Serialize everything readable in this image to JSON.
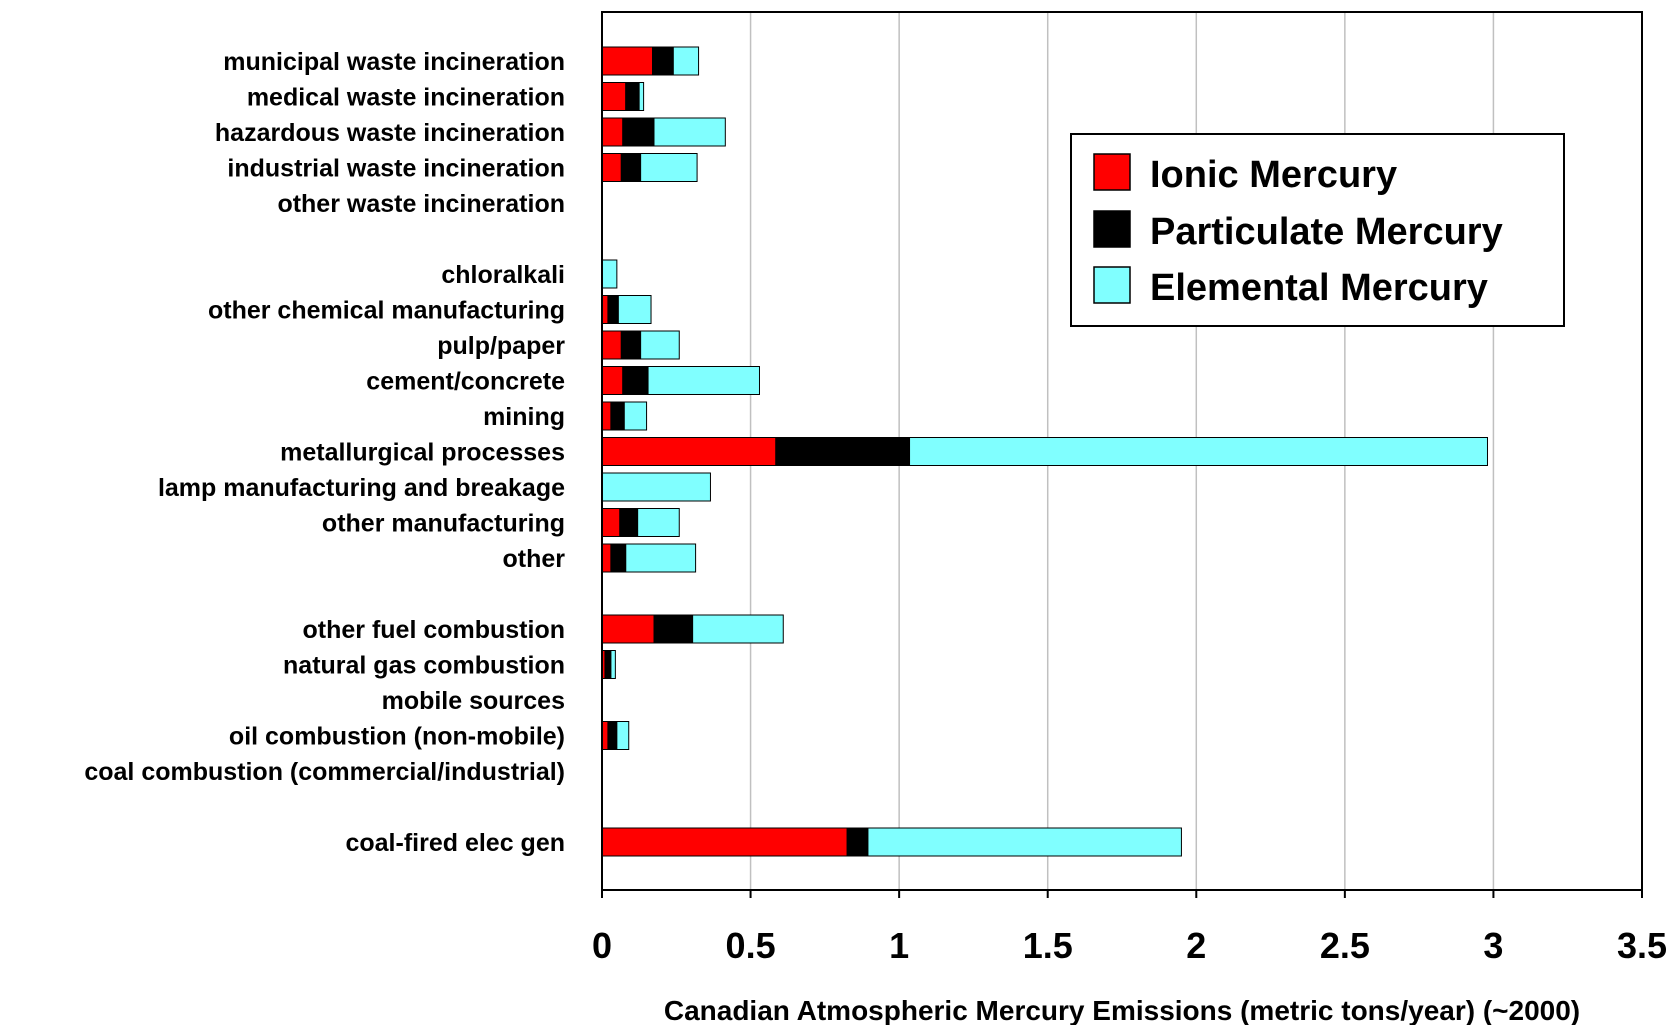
{
  "chart_data": {
    "type": "bar",
    "orientation": "horizontal",
    "stacked": true,
    "categories": [
      "municipal waste incineration",
      "medical waste incineration",
      "hazardous waste incineration",
      "industrial waste incineration",
      "other waste incineration",
      "chloralkali",
      "other chemical manufacturing",
      "pulp/paper",
      "cement/concrete",
      "mining",
      "metallurgical processes",
      "lamp manufacturing and breakage",
      "other manufacturing",
      "other",
      "other fuel combustion",
      "natural gas combustion",
      "mobile sources",
      "oil combustion (non-mobile)",
      "coal combustion (commercial/industrial)",
      "coal-fired elec gen"
    ],
    "series": [
      {
        "name": "Ionic Mercury",
        "color": "#ff0000",
        "values": [
          0.17,
          0.08,
          0.07,
          0.065,
          0,
          0,
          0.02,
          0.065,
          0.07,
          0.03,
          0.585,
          0,
          0.06,
          0.03,
          0.175,
          0.01,
          0,
          0.02,
          0,
          0.825
        ]
      },
      {
        "name": "Particulate Mercury",
        "color": "#000000",
        "values": [
          0.07,
          0.045,
          0.105,
          0.065,
          0,
          0,
          0.035,
          0.065,
          0.085,
          0.045,
          0.45,
          0,
          0.06,
          0.05,
          0.13,
          0.02,
          0,
          0.03,
          0,
          0.07
        ]
      },
      {
        "name": "Elemental Mercury",
        "color": "#80ffff",
        "values": [
          0.085,
          0.015,
          0.24,
          0.19,
          0,
          0.05,
          0.11,
          0.13,
          0.375,
          0.075,
          1.945,
          0.365,
          0.14,
          0.235,
          0.305,
          0.015,
          0,
          0.04,
          0,
          1.055
        ]
      }
    ],
    "xlabel": "Canadian Atmospheric Mercury Emissions (metric tons/year) (~2000)",
    "xlim": [
      0,
      3.5
    ],
    "xticks": [
      "0",
      "0.5",
      "1",
      "1.5",
      "2",
      "2.5",
      "3",
      "3.5"
    ],
    "grid": "vertical",
    "legend": "top-right"
  }
}
